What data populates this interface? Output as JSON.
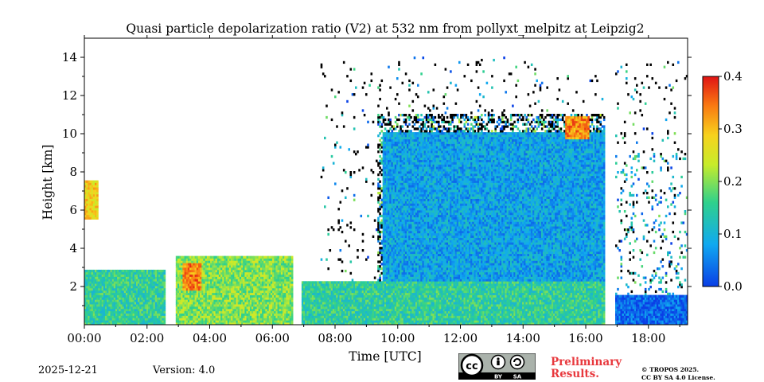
{
  "chart_data": {
    "type": "heatmap",
    "title": "Quasi particle depolarization ratio (V2) at 532 nm from pollyxt_melpitz at Leipzig2",
    "xlabel": "Time [UTC]",
    "ylabel": "Height [km]",
    "xlim": [
      0,
      19.25
    ],
    "ylim": [
      0,
      15
    ],
    "x_ticks": [
      {
        "v": 0,
        "label": "00:00"
      },
      {
        "v": 2,
        "label": "02:00"
      },
      {
        "v": 4,
        "label": "04:00"
      },
      {
        "v": 6,
        "label": "06:00"
      },
      {
        "v": 8,
        "label": "08:00"
      },
      {
        "v": 10,
        "label": "10:00"
      },
      {
        "v": 12,
        "label": "12:00"
      },
      {
        "v": 14,
        "label": "14:00"
      },
      {
        "v": 16,
        "label": "16:00"
      },
      {
        "v": 18,
        "label": "18:00"
      }
    ],
    "y_ticks": [
      {
        "v": 2,
        "label": "2"
      },
      {
        "v": 4,
        "label": "4"
      },
      {
        "v": 6,
        "label": "6"
      },
      {
        "v": 8,
        "label": "8"
      },
      {
        "v": 10,
        "label": "10"
      },
      {
        "v": 12,
        "label": "12"
      },
      {
        "v": 14,
        "label": "14"
      }
    ],
    "colorbar": {
      "range": [
        0,
        0.4
      ],
      "ticks": [
        {
          "v": 0.0,
          "label": "0.0"
        },
        {
          "v": 0.1,
          "label": "0.1"
        },
        {
          "v": 0.2,
          "label": "0.2"
        },
        {
          "v": 0.3,
          "label": "0.3"
        },
        {
          "v": 0.4,
          "label": "0.4"
        }
      ]
    },
    "data_gaps_hours": [
      [
        2.55,
        2.9
      ],
      [
        6.6,
        6.9
      ],
      [
        16.6,
        16.9
      ]
    ],
    "features": [
      {
        "t0": 0.0,
        "t1": 2.55,
        "h0": 0,
        "h1": 2.8,
        "value": 0.15
      },
      {
        "t0": 2.9,
        "t1": 6.6,
        "h0": 0,
        "h1": 3.6,
        "value": 0.2
      },
      {
        "t0": 3.1,
        "t1": 3.7,
        "h0": 1.8,
        "h1": 3.2,
        "value": 0.34
      },
      {
        "t0": 6.9,
        "t1": 16.6,
        "h0": 0,
        "h1": 2.2,
        "value": 0.15
      },
      {
        "t0": 9.5,
        "t1": 16.6,
        "h0": 2.2,
        "h1": 10,
        "value": 0.08
      },
      {
        "t0": 15.3,
        "t1": 16.1,
        "h0": 9.6,
        "h1": 10.8,
        "value": 0.33
      },
      {
        "t0": 0.0,
        "t1": 0.4,
        "h0": 5.5,
        "h1": 7.5,
        "value": 0.28
      },
      {
        "t0": 16.9,
        "t1": 19.25,
        "h0": 0,
        "h1": 1.5,
        "value": 0.03
      }
    ]
  },
  "footer": {
    "date": "2025-12-21",
    "version": "Version: 4.0",
    "preliminary_line1": "Preliminary",
    "preliminary_line2": "Results.",
    "license_line1": "© TROPOS 2025.",
    "license_line2": "CC BY SA 4.0 License.",
    "cc_text": "cc",
    "by_text": "BY",
    "sa_text": "SA"
  }
}
